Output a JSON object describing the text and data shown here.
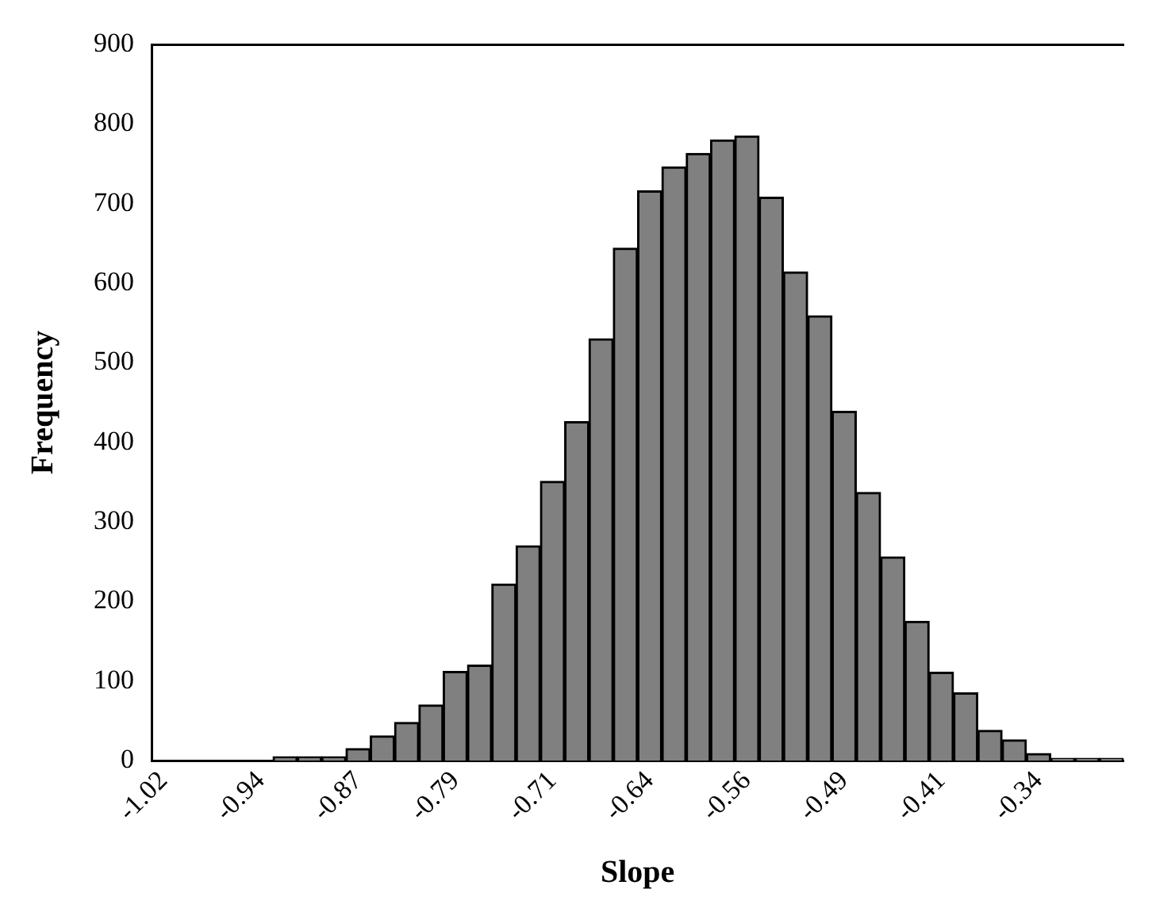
{
  "chart_data": {
    "type": "bar",
    "xlabel": "Slope",
    "ylabel": "Frequency",
    "categories": [
      "-1.02",
      null,
      null,
      null,
      "-0.94",
      null,
      null,
      null,
      "-0.87",
      null,
      null,
      null,
      "-0.79",
      null,
      null,
      null,
      "-0.71",
      null,
      null,
      null,
      "-0.64",
      null,
      null,
      null,
      "-0.56",
      null,
      null,
      null,
      "-0.49",
      null,
      null,
      null,
      "-0.41",
      null,
      null,
      null,
      "-0.34",
      null,
      null,
      null
    ],
    "values": [
      0,
      0,
      0,
      0,
      0,
      5,
      5,
      5,
      15,
      31,
      48,
      70,
      112,
      120,
      222,
      270,
      351,
      426,
      530,
      644,
      716,
      746,
      763,
      780,
      785,
      708,
      614,
      559,
      439,
      337,
      256,
      175,
      111,
      85,
      38,
      26,
      9,
      3,
      3,
      3
    ],
    "color": "#808080",
    "ylim": [
      0,
      900
    ],
    "yticks": [
      0,
      100,
      200,
      300,
      400,
      500,
      600,
      700,
      800,
      900
    ],
    "grid": false,
    "legend": false
  }
}
